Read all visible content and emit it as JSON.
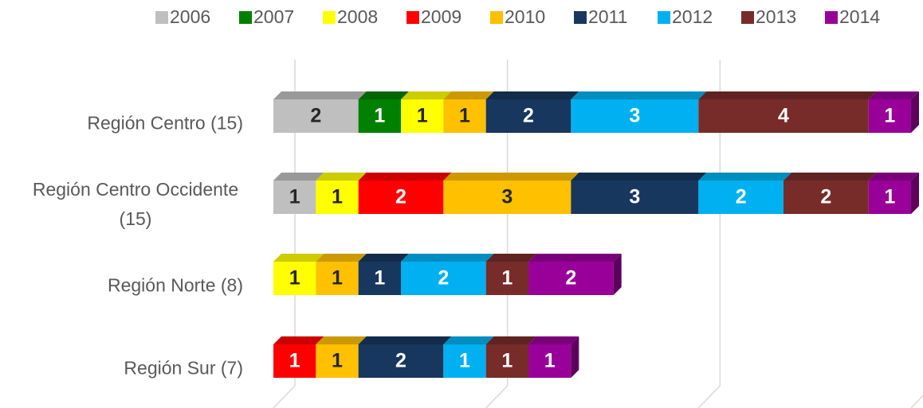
{
  "chart_data": {
    "type": "bar",
    "orientation": "horizontal",
    "stacked": true,
    "categories": [
      "Región Centro (15)",
      "Región Centro Occidente (15)",
      "Región Norte (8)",
      "Región Sur (7)"
    ],
    "series": [
      {
        "name": "2006",
        "color": "#bfbfbf",
        "values": [
          2,
          1,
          null,
          null
        ]
      },
      {
        "name": "2007",
        "color": "#008000",
        "values": [
          1,
          null,
          null,
          null
        ]
      },
      {
        "name": "2008",
        "color": "#ffff00",
        "values": [
          1,
          1,
          1,
          null
        ]
      },
      {
        "name": "2009",
        "color": "#ff0000",
        "values": [
          null,
          2,
          null,
          1
        ]
      },
      {
        "name": "2010",
        "color": "#ffc000",
        "values": [
          1,
          3,
          1,
          1
        ]
      },
      {
        "name": "2011",
        "color": "#17375e",
        "values": [
          2,
          3,
          1,
          2
        ]
      },
      {
        "name": "2012",
        "color": "#00b0f0",
        "values": [
          3,
          2,
          2,
          1
        ]
      },
      {
        "name": "2013",
        "color": "#772c2a",
        "values": [
          4,
          2,
          1,
          1
        ]
      },
      {
        "name": "2014",
        "color": "#990099",
        "values": [
          1,
          1,
          2,
          1
        ]
      }
    ],
    "xlim": [
      0,
      15
    ],
    "xticks": [
      0,
      5,
      10,
      15
    ],
    "grid": true,
    "legend": "top"
  }
}
